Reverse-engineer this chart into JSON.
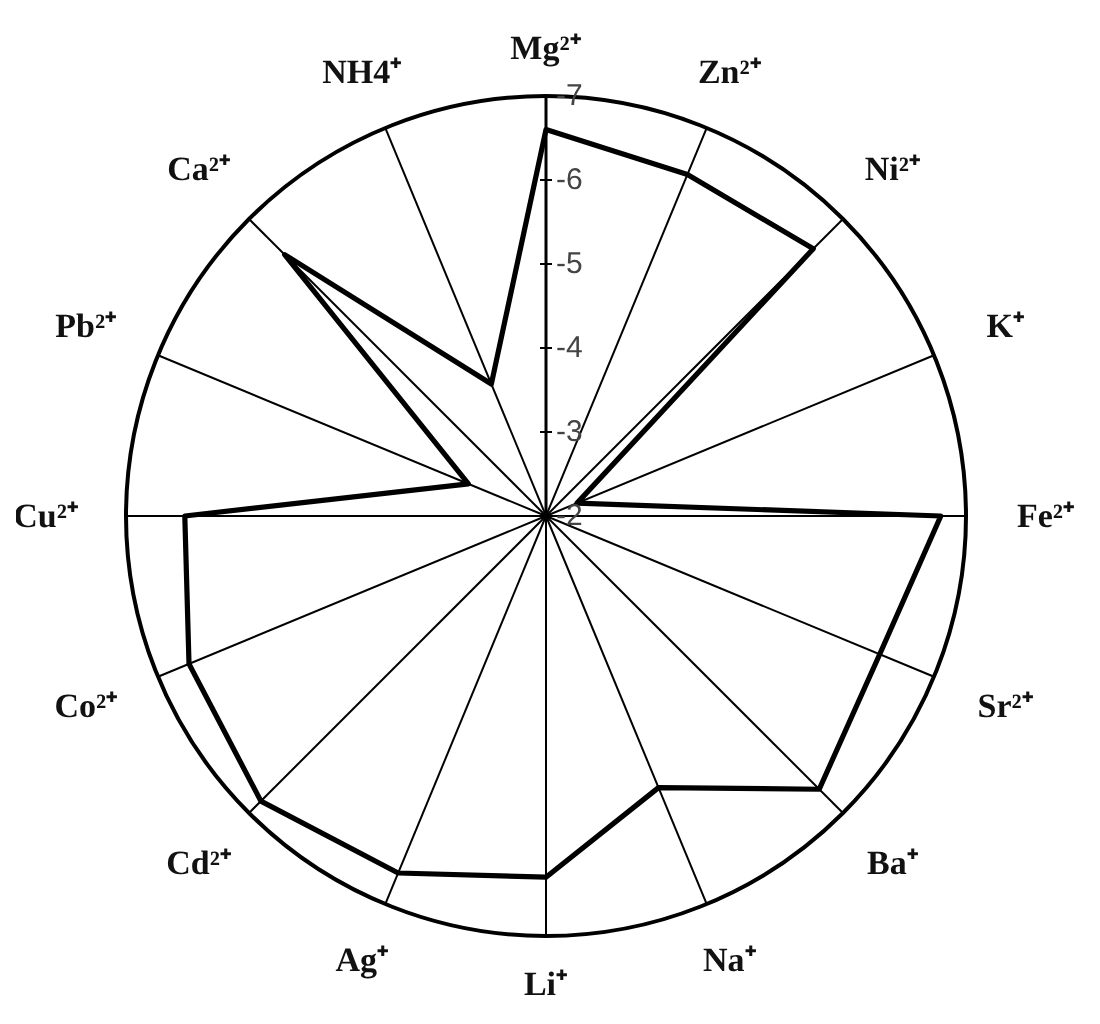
{
  "chart_data": {
    "type": "radar",
    "categories": [
      "Mg²⁺",
      "Zn²⁺",
      "Ni²⁺",
      "K⁺",
      "Fe²⁺",
      "Sr²⁺",
      "Ba⁺",
      "Na⁺",
      "Li⁺",
      "Ag⁺",
      "Cd²⁺",
      "Co²⁺",
      "Cu²⁺",
      "Pb²⁺",
      "Ca²⁺",
      "NH4⁺"
    ],
    "series": [
      {
        "color": "#000000",
        "values": [
          -6.6,
          -6.4,
          -6.5,
          -2.4,
          -6.7,
          -6.3,
          -6.6,
          -5.5,
          -6.3,
          -6.6,
          -6.8,
          -6.6,
          -6.3,
          -3.0,
          -6.4,
          -3.7
        ]
      }
    ],
    "ylim": [
      -2,
      -7
    ],
    "yticks": [
      -2,
      -3,
      -4,
      -5,
      -6,
      -7
    ],
    "grid": true
  }
}
